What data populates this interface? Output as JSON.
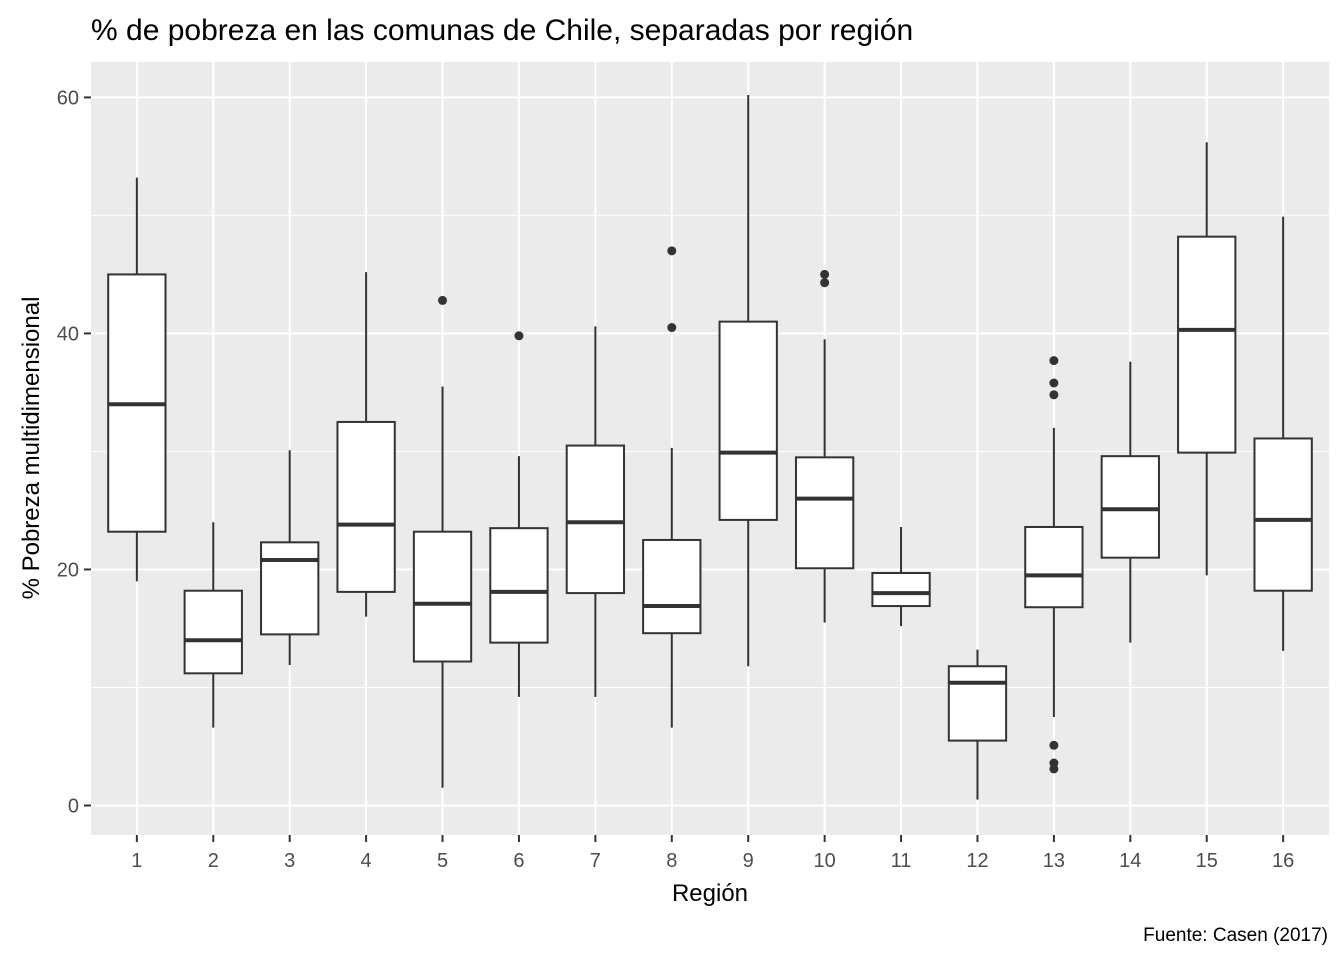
{
  "chart_data": {
    "type": "boxplot",
    "title": "% de pobreza en las comunas de Chile, separadas por región",
    "xlabel": "Región",
    "ylabel": "% Pobreza multidimensional",
    "caption": "Fuente: Casen (2017)",
    "ylim": [
      -2.5,
      63
    ],
    "yticks": [
      0,
      20,
      40,
      60
    ],
    "grid": true,
    "categories": [
      "1",
      "2",
      "3",
      "4",
      "5",
      "6",
      "7",
      "8",
      "9",
      "10",
      "11",
      "12",
      "13",
      "14",
      "15",
      "16"
    ],
    "boxes": [
      {
        "region": "1",
        "whisker_low": 19.0,
        "q1": 23.2,
        "median": 34.0,
        "q3": 45.0,
        "whisker_high": 53.2,
        "outliers": []
      },
      {
        "region": "2",
        "whisker_low": 6.6,
        "q1": 11.2,
        "median": 14.0,
        "q3": 18.2,
        "whisker_high": 24.0,
        "outliers": []
      },
      {
        "region": "3",
        "whisker_low": 11.9,
        "q1": 14.5,
        "median": 20.8,
        "q3": 22.3,
        "whisker_high": 30.1,
        "outliers": []
      },
      {
        "region": "4",
        "whisker_low": 16.0,
        "q1": 18.1,
        "median": 23.8,
        "q3": 32.5,
        "whisker_high": 45.2,
        "outliers": []
      },
      {
        "region": "5",
        "whisker_low": 1.5,
        "q1": 12.2,
        "median": 17.1,
        "q3": 23.2,
        "whisker_high": 35.5,
        "outliers": [
          42.8
        ]
      },
      {
        "region": "6",
        "whisker_low": 9.2,
        "q1": 13.8,
        "median": 18.1,
        "q3": 23.5,
        "whisker_high": 29.6,
        "outliers": [
          39.8
        ]
      },
      {
        "region": "7",
        "whisker_low": 9.2,
        "q1": 18.0,
        "median": 24.0,
        "q3": 30.5,
        "whisker_high": 40.6,
        "outliers": []
      },
      {
        "region": "8",
        "whisker_low": 6.6,
        "q1": 14.6,
        "median": 16.9,
        "q3": 22.5,
        "whisker_high": 30.3,
        "outliers": [
          40.5,
          47.0
        ]
      },
      {
        "region": "9",
        "whisker_low": 11.8,
        "q1": 24.2,
        "median": 29.9,
        "q3": 41.0,
        "whisker_high": 60.2,
        "outliers": []
      },
      {
        "region": "10",
        "whisker_low": 15.5,
        "q1": 20.1,
        "median": 26.0,
        "q3": 29.5,
        "whisker_high": 39.5,
        "outliers": [
          44.3,
          45.0
        ]
      },
      {
        "region": "11",
        "whisker_low": 15.2,
        "q1": 16.9,
        "median": 18.0,
        "q3": 19.7,
        "whisker_high": 23.6,
        "outliers": []
      },
      {
        "region": "12",
        "whisker_low": 0.5,
        "q1": 5.5,
        "median": 10.4,
        "q3": 11.8,
        "whisker_high": 13.2,
        "outliers": []
      },
      {
        "region": "13",
        "whisker_low": 7.5,
        "q1": 16.8,
        "median": 19.5,
        "q3": 23.6,
        "whisker_high": 32.0,
        "outliers": [
          37.7,
          35.8,
          34.8,
          5.1,
          3.6,
          3.1
        ]
      },
      {
        "region": "14",
        "whisker_low": 13.8,
        "q1": 21.0,
        "median": 25.1,
        "q3": 29.6,
        "whisker_high": 37.6,
        "outliers": []
      },
      {
        "region": "15",
        "whisker_low": 19.5,
        "q1": 29.9,
        "median": 40.3,
        "q3": 48.2,
        "whisker_high": 56.2,
        "outliers": []
      },
      {
        "region": "16",
        "whisker_low": 13.1,
        "q1": 18.2,
        "median": 24.2,
        "q3": 31.1,
        "whisker_high": 49.9,
        "outliers": []
      }
    ],
    "colors": {
      "panel_background": "#ebebeb",
      "grid_major": "#ffffff",
      "box_fill": "#ffffff",
      "box_line": "#333333",
      "tick_text": "#4d4d4d"
    }
  }
}
